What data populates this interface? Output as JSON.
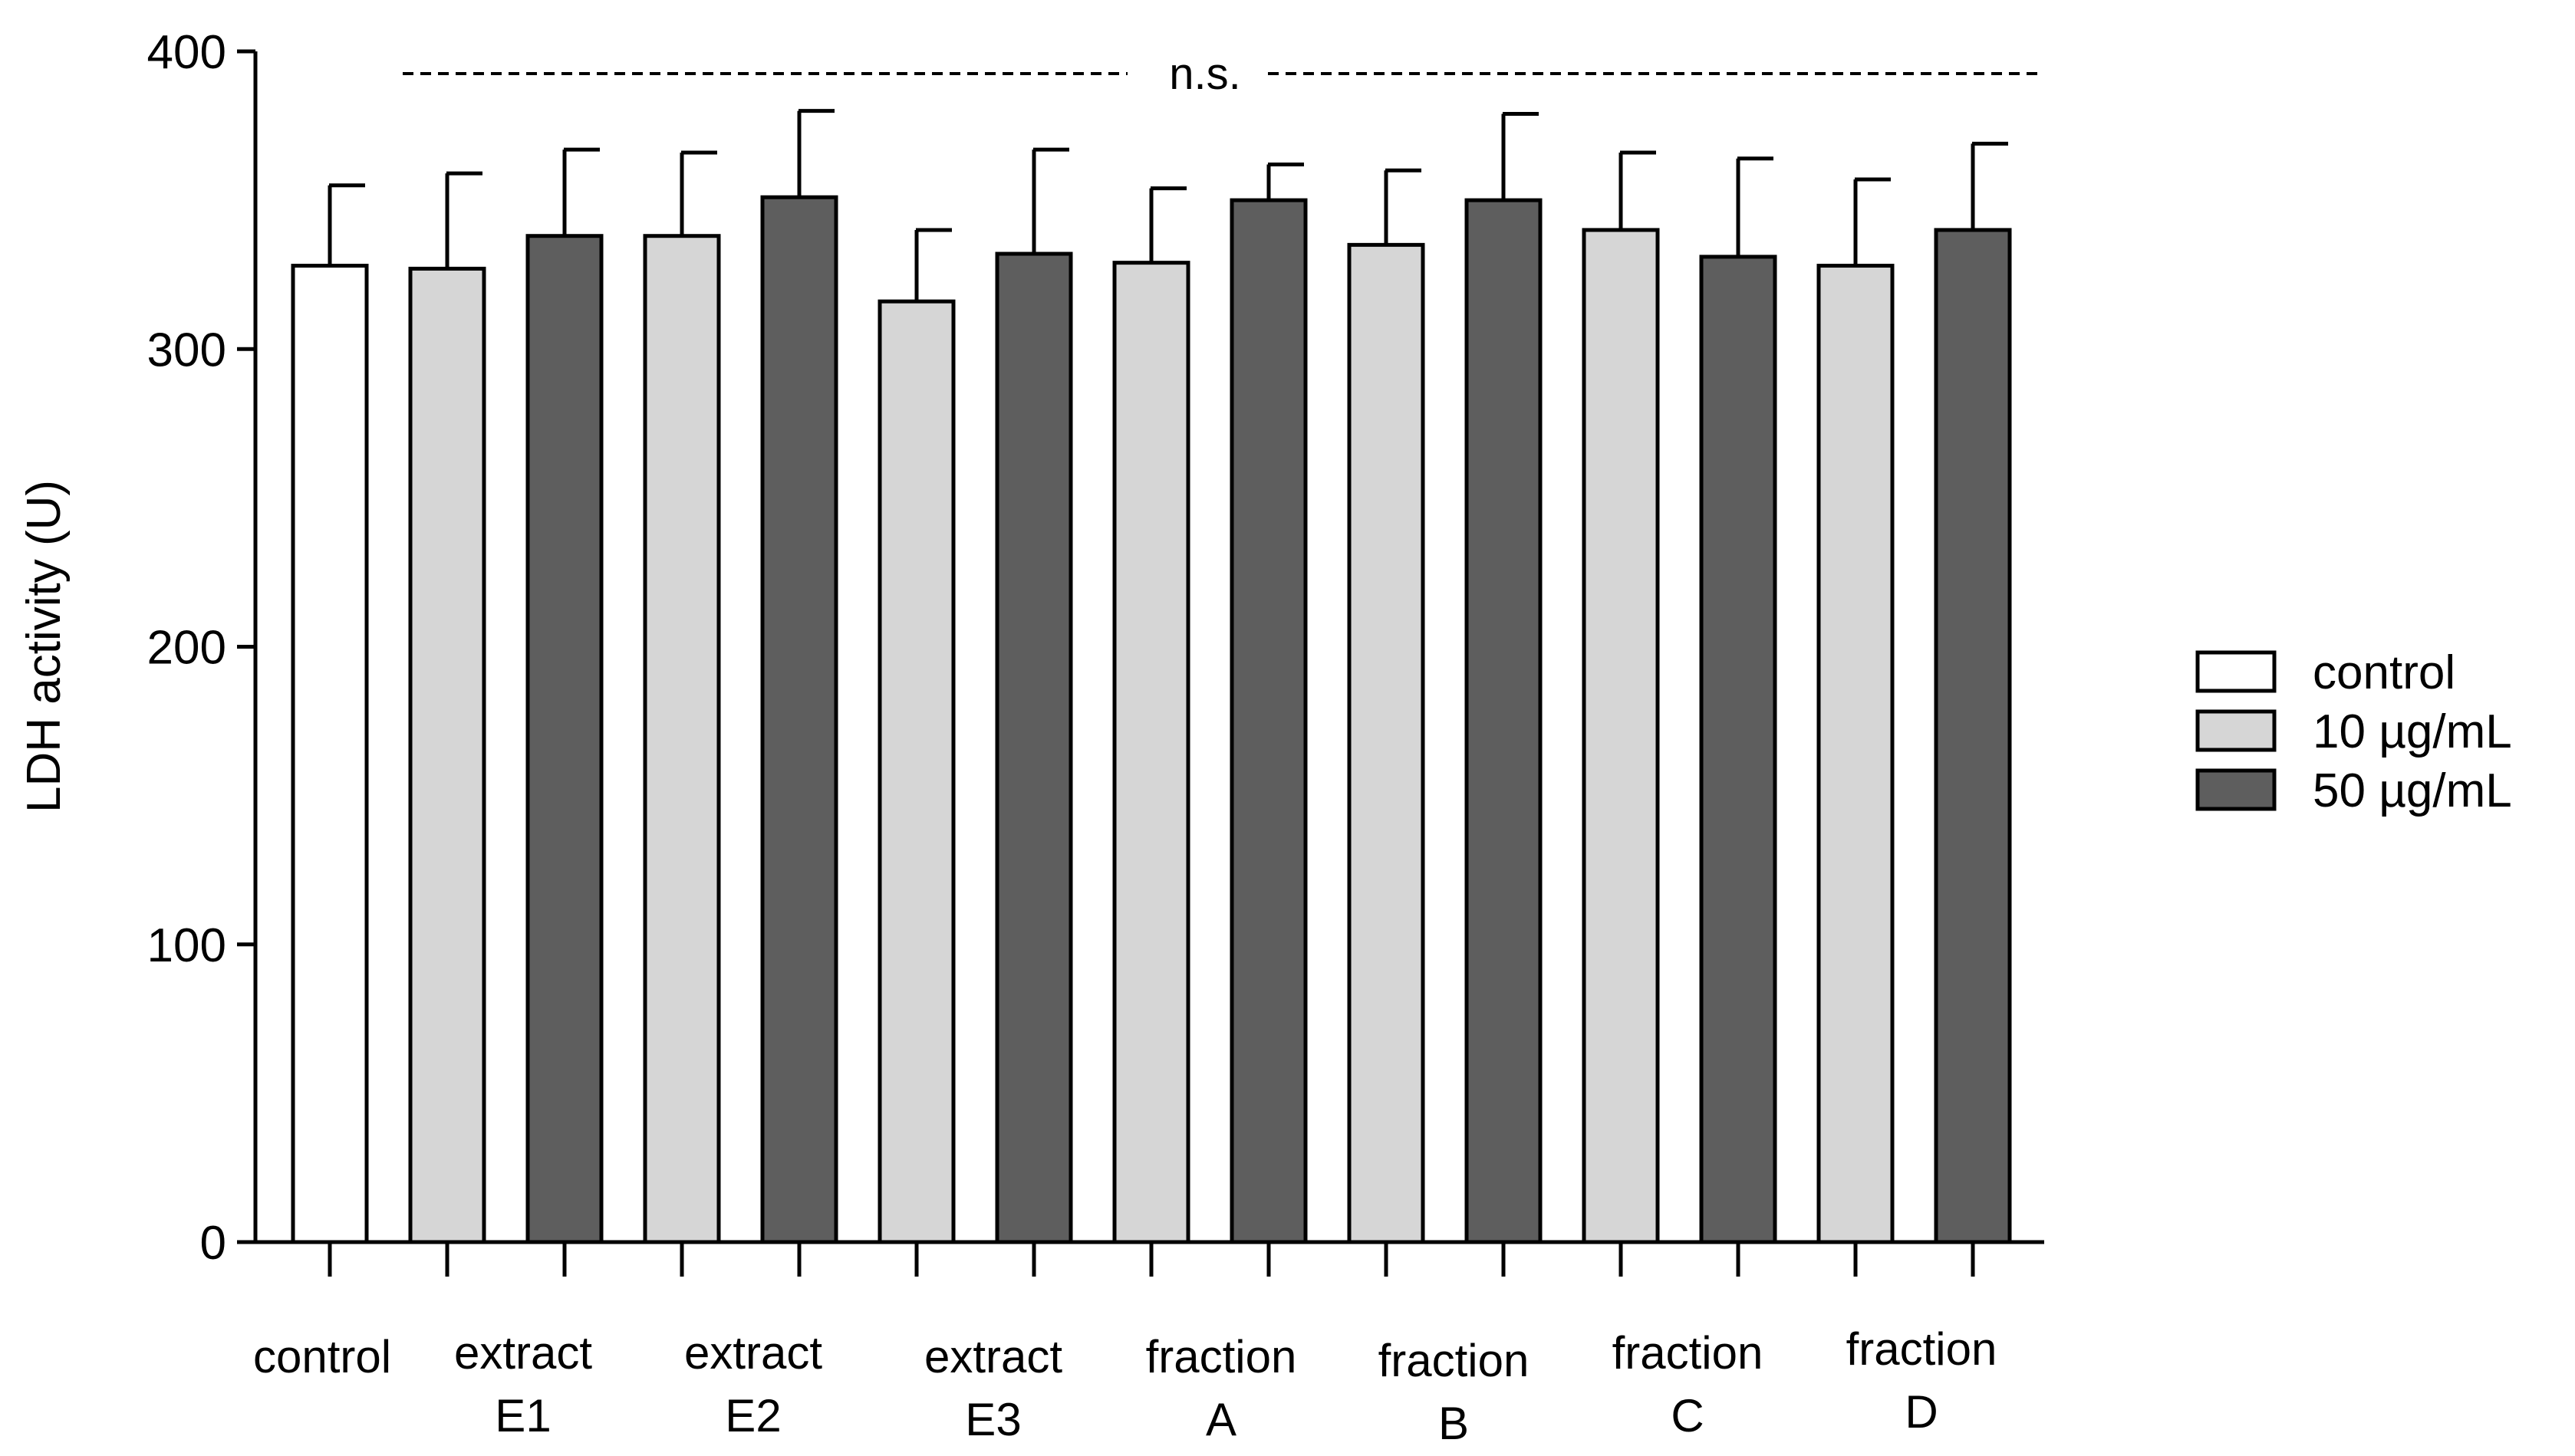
{
  "chart_data": {
    "type": "bar",
    "ylabel": "LDH activity (U)",
    "xlabel": "",
    "ylim": [
      0,
      400
    ],
    "yticks": [
      "0",
      "100",
      "200",
      "300",
      "400"
    ],
    "grid": false,
    "legend_position": "right",
    "annotation": "n.s.",
    "groups": [
      {
        "label_line1": "control",
        "label_line2": ""
      },
      {
        "label_line1": "extract",
        "label_line2": "E1"
      },
      {
        "label_line1": "extract",
        "label_line2": "E2"
      },
      {
        "label_line1": "extract",
        "label_line2": "E3"
      },
      {
        "label_line1": "fraction",
        "label_line2": "A"
      },
      {
        "label_line1": "fraction",
        "label_line2": "B"
      },
      {
        "label_line1": "fraction",
        "label_line2": "C"
      },
      {
        "label_line1": "fraction",
        "label_line2": "D"
      }
    ],
    "series": [
      {
        "name": "control",
        "color": "#ffffff"
      },
      {
        "name": "10 µg/mL",
        "color": "#d6d6d6"
      },
      {
        "name": "50 µg/mL",
        "color": "#5e5e5e"
      }
    ],
    "bars": [
      {
        "series": 0,
        "value": 328,
        "error": 27
      },
      {
        "series": 1,
        "value": 327,
        "error": 32
      },
      {
        "series": 2,
        "value": 338,
        "error": 29
      },
      {
        "series": 1,
        "value": 338,
        "error": 28
      },
      {
        "series": 2,
        "value": 351,
        "error": 29
      },
      {
        "series": 1,
        "value": 316,
        "error": 24
      },
      {
        "series": 2,
        "value": 332,
        "error": 35
      },
      {
        "series": 1,
        "value": 329,
        "error": 25
      },
      {
        "series": 2,
        "value": 350,
        "error": 12
      },
      {
        "series": 1,
        "value": 335,
        "error": 25
      },
      {
        "series": 2,
        "value": 350,
        "error": 29
      },
      {
        "series": 1,
        "value": 340,
        "error": 26
      },
      {
        "series": 2,
        "value": 331,
        "error": 33
      },
      {
        "series": 1,
        "value": 328,
        "error": 29
      },
      {
        "series": 2,
        "value": 340,
        "error": 29
      }
    ]
  }
}
